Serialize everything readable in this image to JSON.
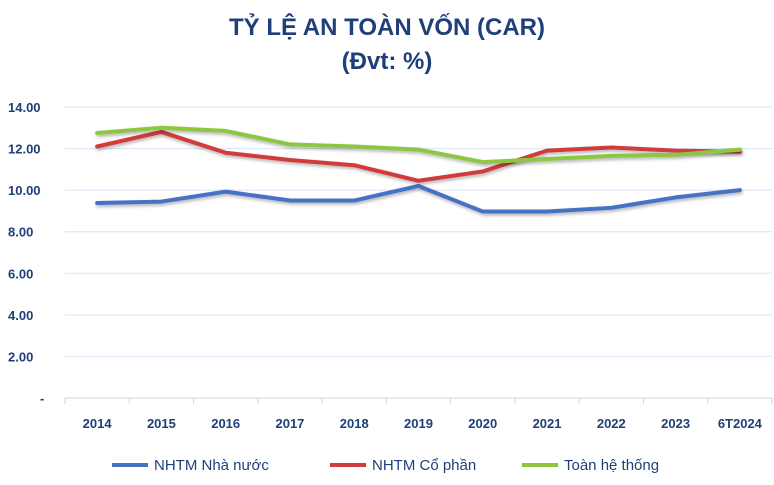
{
  "chart_data": {
    "type": "line",
    "title": "TỶ LỆ AN TOÀN VỐN (CAR)",
    "subtitle": "(Đvt: %)",
    "categories": [
      "2014",
      "2015",
      "2016",
      "2017",
      "2018",
      "2019",
      "2020",
      "2021",
      "2022",
      "2023",
      "6T2024"
    ],
    "ylim": [
      0,
      14
    ],
    "yticks": [
      "-",
      "2.00",
      "4.00",
      "6.00",
      "8.00",
      "10.00",
      "12.00",
      "14.00"
    ],
    "grid": true,
    "legend_position": "bottom",
    "series": [
      {
        "name": "NHTM Nhà nước",
        "color": "#4472C4",
        "values": [
          9.38,
          9.45,
          9.93,
          9.5,
          9.5,
          10.2,
          8.97,
          8.97,
          9.15,
          9.65,
          10.0
        ]
      },
      {
        "name": "NHTM Cổ phần",
        "color": "#D13B3B",
        "values": [
          12.1,
          12.8,
          11.8,
          11.45,
          11.2,
          10.45,
          10.9,
          11.9,
          12.05,
          11.9,
          11.85
        ]
      },
      {
        "name": "Toàn hệ thống",
        "color": "#8DC63F",
        "values": [
          12.75,
          13.0,
          12.85,
          12.2,
          12.1,
          11.95,
          11.35,
          11.5,
          11.65,
          11.7,
          11.95
        ]
      }
    ]
  }
}
